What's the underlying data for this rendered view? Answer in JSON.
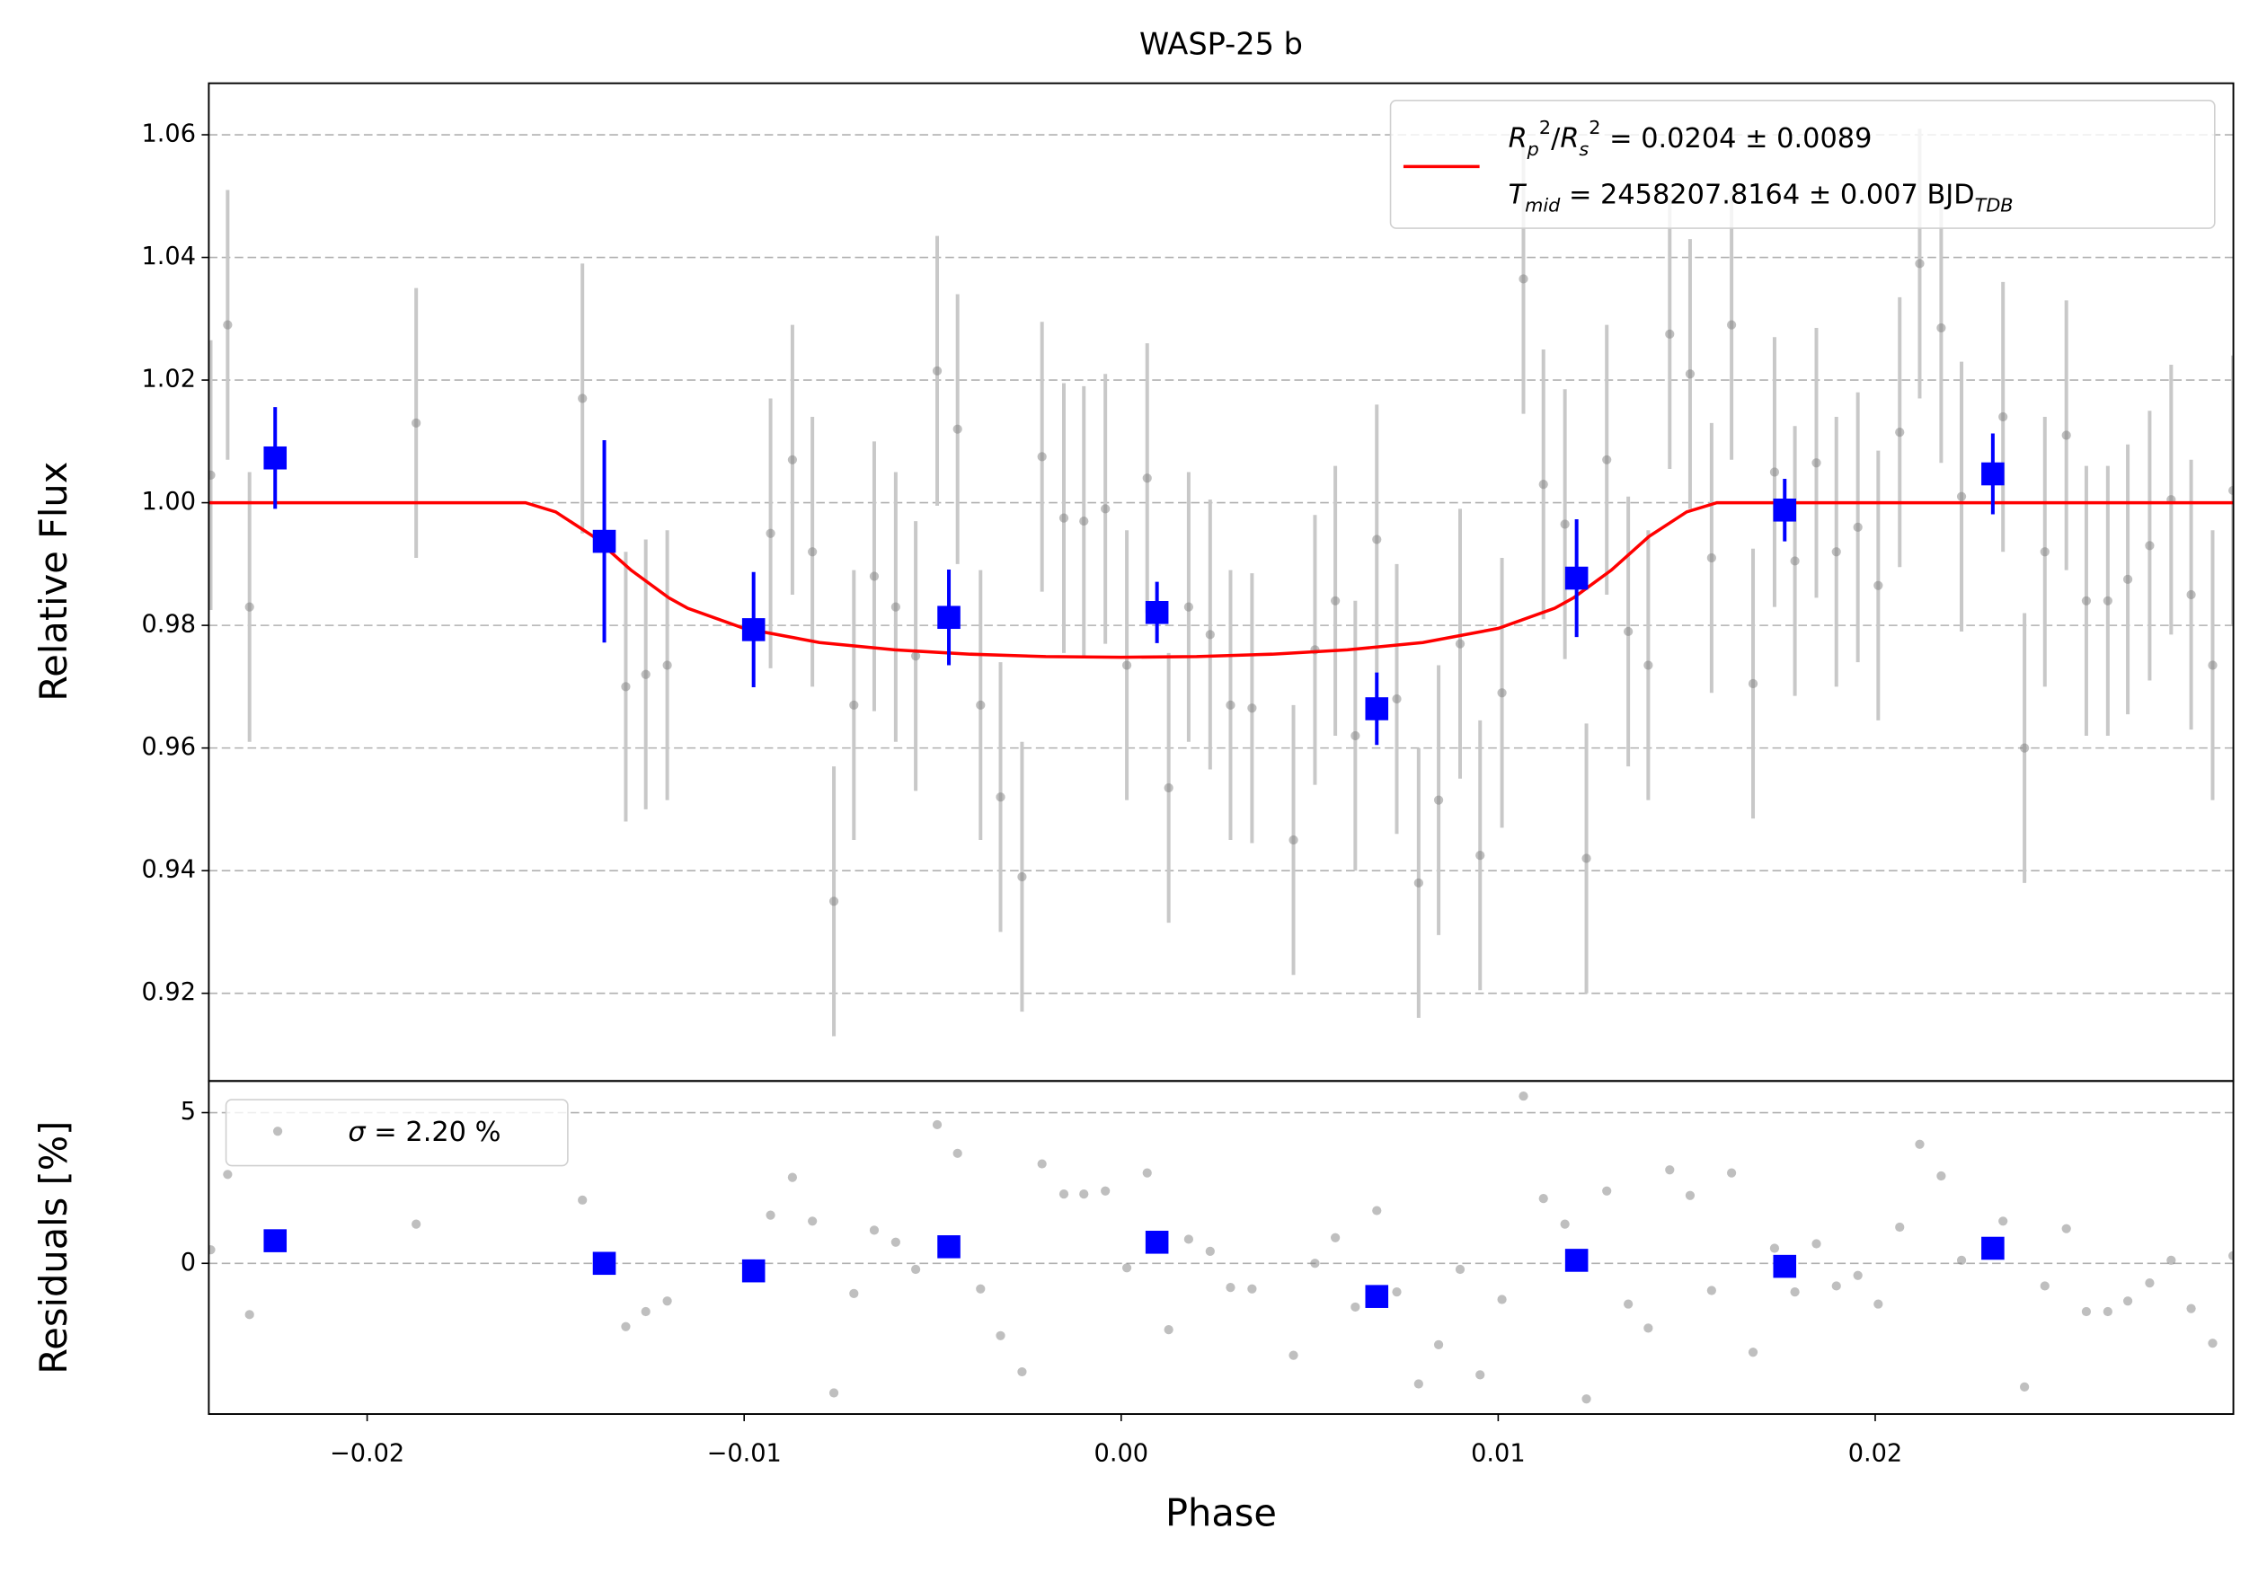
{
  "chart_data": [
    {
      "type": "scatter",
      "title": "WASP-25 b",
      "ylabel": "Relative Flux",
      "xlim": [
        -0.0242,
        0.0295
      ],
      "ylim": [
        0.9057,
        1.0684
      ],
      "yticks": [
        0.92,
        0.94,
        0.96,
        0.98,
        {
          "value": 1,
          "label": "1.00"
        },
        1.02,
        1.04,
        1.06
      ],
      "grid": true,
      "legend": "upper right",
      "points": {
        "color": "#808080",
        "error_color": "#c8c8c8",
        "yerr": 0.022,
        "x": [
          -0.02415,
          -0.0237,
          -0.02312,
          -0.0187,
          -0.01429,
          -0.01314,
          -0.01261,
          -0.01204,
          -0.0093,
          -0.00872,
          -0.00819,
          -0.00762,
          -0.00709,
          -0.00655,
          -0.00598,
          -0.00545,
          -0.00488,
          -0.00434,
          -0.00373,
          -0.0032,
          -0.00263,
          -0.0021,
          -0.00152,
          -0.00099,
          -0.00042,
          0.00015,
          0.00069,
          0.00126,
          0.00179,
          0.00236,
          0.0029,
          0.00347,
          0.00457,
          0.00514,
          0.00568,
          0.00621,
          0.00678,
          0.00731,
          0.00789,
          0.00842,
          0.00899,
          0.00952,
          0.0101,
          0.01067,
          0.0112,
          0.01177,
          0.01234,
          0.01288,
          0.01345,
          0.01398,
          0.01455,
          0.01509,
          0.01566,
          0.01619,
          0.01676,
          0.01733,
          0.01787,
          0.01844,
          0.01897,
          0.01954,
          0.02008,
          0.02065,
          0.02118,
          0.02175,
          0.02229,
          0.02339,
          0.02396,
          0.0245,
          0.02507,
          0.0256,
          0.02617,
          0.0267,
          0.02728,
          0.02785,
          0.02838,
          0.02895,
          0.02949
        ],
        "values": [
          1.0045,
          1.029,
          0.983,
          1.013,
          1.017,
          0.97,
          0.972,
          0.9735,
          0.995,
          1.007,
          0.992,
          0.935,
          0.967,
          0.988,
          0.983,
          0.975,
          1.0215,
          1.012,
          0.967,
          0.952,
          0.939,
          1.0075,
          0.9975,
          0.997,
          0.999,
          0.9735,
          1.004,
          0.9535,
          0.983,
          0.9785,
          0.967,
          0.9665,
          0.945,
          0.976,
          0.984,
          0.962,
          0.994,
          0.968,
          0.938,
          0.9515,
          0.977,
          0.9425,
          0.969,
          1.0365,
          1.003,
          0.9965,
          0.942,
          1.007,
          0.979,
          0.9735,
          1.0275,
          1.021,
          0.991,
          1.029,
          0.9705,
          1.005,
          0.9905,
          1.0065,
          0.992,
          0.996,
          0.9865,
          1.0115,
          1.039,
          1.0285,
          1.001,
          1.014,
          0.96,
          0.992,
          1.011,
          0.984,
          0.984,
          0.9875,
          0.993,
          1.0005,
          0.985,
          0.9735,
          1.002
        ]
      },
      "binned": {
        "color": "#0000ff",
        "x": [
          -0.02244,
          -0.01371,
          -0.00975,
          -0.00457,
          0.00095,
          0.00678,
          0.01208,
          0.0176,
          0.02312
        ],
        "values": [
          1.0073,
          0.9937,
          0.9793,
          0.9813,
          0.9821,
          0.9664,
          0.9877,
          0.9988,
          1.0047
        ],
        "errors": [
          0.0083,
          0.0165,
          0.0094,
          0.0078,
          0.005,
          0.0059,
          0.0096,
          0.0051,
          0.0066
        ]
      },
      "model": {
        "color": "#ff0000",
        "legend_lines": [
          [
            {
              "text": "R",
              "style": "italic"
            },
            {
              "text": "p",
              "style": "sub"
            },
            {
              "text": "2",
              "style": "sup"
            },
            {
              "text": "/",
              "style": "normal"
            },
            {
              "text": "R",
              "style": "italic"
            },
            {
              "text": "s",
              "style": "sub"
            },
            {
              "text": "2",
              "style": "sup"
            },
            {
              "text": " = 0.0204 ± 0.0089",
              "style": "normal"
            }
          ],
          [
            {
              "text": "T",
              "style": "italic"
            },
            {
              "text": "mid",
              "style": "sub"
            },
            {
              "text": " = 2458207.8164 ± 0.007 BJD",
              "style": "normal"
            },
            {
              "text": "TDB",
              "style": "sub"
            }
          ]
        ],
        "x": [
          -0.0242,
          -0.0158,
          -0.015,
          -0.014,
          -0.013,
          -0.012,
          -0.0115,
          -0.01,
          -0.008,
          -0.006,
          -0.004,
          -0.002,
          0,
          0.002,
          0.004,
          0.006,
          0.008,
          0.01,
          0.0115,
          0.012,
          0.013,
          0.014,
          0.015,
          0.0158,
          0.0295
        ],
        "values": [
          1,
          1,
          0.9985,
          0.9945,
          0.989,
          0.9845,
          0.9828,
          0.9795,
          0.9772,
          0.976,
          0.9753,
          0.9749,
          0.9748,
          0.9749,
          0.9753,
          0.976,
          0.9772,
          0.9795,
          0.9828,
          0.9845,
          0.989,
          0.9945,
          0.9985,
          1,
          1
        ]
      }
    },
    {
      "type": "scatter",
      "xlabel": "Phase",
      "ylabel": "Residuals [%]",
      "xlim": [
        -0.0242,
        0.0295
      ],
      "ylim": [
        -5.0,
        6.05
      ],
      "xticks": [
        {
          "value": -0.02,
          "label": "−0.02"
        },
        {
          "value": -0.01,
          "label": "−0.01"
        },
        {
          "value": 0,
          "label": "0.00"
        },
        0.01,
        0.02
      ],
      "yticks": [
        0,
        5
      ],
      "grid": true,
      "legend": "upper left",
      "points": {
        "color": "#808080",
        "legend_parts": [
          {
            "text": "σ",
            "style": "italic"
          },
          {
            "text": " = 2.20 %",
            "style": "normal"
          }
        ],
        "x": [
          -0.02415,
          -0.0237,
          -0.02312,
          -0.0187,
          -0.01429,
          -0.01314,
          -0.01261,
          -0.01204,
          -0.0093,
          -0.00872,
          -0.00819,
          -0.00762,
          -0.00709,
          -0.00655,
          -0.00598,
          -0.00545,
          -0.00488,
          -0.00434,
          -0.00373,
          -0.0032,
          -0.00263,
          -0.0021,
          -0.00152,
          -0.00099,
          -0.00042,
          0.00015,
          0.00069,
          0.00126,
          0.00179,
          0.00236,
          0.0029,
          0.00347,
          0.00457,
          0.00514,
          0.00568,
          0.00621,
          0.00678,
          0.00731,
          0.00789,
          0.00842,
          0.00899,
          0.00952,
          0.0101,
          0.01067,
          0.0112,
          0.01177,
          0.01234,
          0.01288,
          0.01345,
          0.01398,
          0.01455,
          0.01509,
          0.01566,
          0.01619,
          0.01676,
          0.01733,
          0.01787,
          0.01844,
          0.01897,
          0.01954,
          0.02008,
          0.02065,
          0.02118,
          0.02175,
          0.02229,
          0.02339,
          0.02396,
          0.0245,
          0.02507,
          0.0256,
          0.02617,
          0.0267,
          0.02728,
          0.02785,
          0.02838,
          0.02895,
          0.02949
        ],
        "values": [
          0.45,
          2.95,
          -1.7,
          1.3,
          2.1,
          -2.1,
          -1.6,
          -1.25,
          1.6,
          2.85,
          1.4,
          -4.3,
          -1.0,
          1.1,
          0.7,
          -0.2,
          4.6,
          3.65,
          -0.85,
          -2.4,
          -3.6,
          3.3,
          2.3,
          2.3,
          2.4,
          -0.15,
          3.0,
          -2.2,
          0.8,
          0.4,
          -0.8,
          -0.85,
          -3.05,
          0.0,
          0.85,
          -1.45,
          1.75,
          -0.95,
          -4.0,
          -2.7,
          -0.2,
          -3.7,
          -1.2,
          5.55,
          2.15,
          1.3,
          -4.5,
          2.4,
          -1.35,
          -2.15,
          3.1,
          2.25,
          -0.9,
          3.0,
          -2.95,
          0.5,
          -0.95,
          0.65,
          -0.75,
          -0.4,
          -1.35,
          1.2,
          3.95,
          2.9,
          0.1,
          1.4,
          -4.1,
          -0.75,
          1.15,
          -1.6,
          -1.6,
          -1.25,
          -0.65,
          0.1,
          -1.5,
          -2.65,
          0.25
        ]
      },
      "binned": {
        "color": "#0000ff",
        "x": [
          -0.02244,
          -0.01371,
          -0.00975,
          -0.00457,
          0.00095,
          0.00678,
          0.01208,
          0.0176,
          0.02312
        ],
        "values": [
          0.75,
          0,
          -0.25,
          0.55,
          0.7,
          -1.1,
          0.1,
          -0.1,
          0.5
        ]
      }
    }
  ]
}
